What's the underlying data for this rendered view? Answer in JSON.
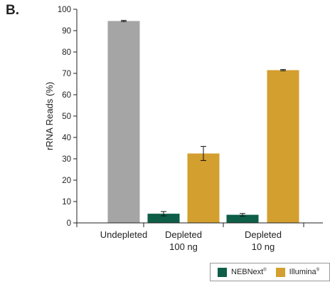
{
  "panel_label": "B.",
  "colors": {
    "undepleted": "#a5a5a5",
    "nebnext": "#0e5e48",
    "illumina": "#d39f2f",
    "axis": "#222222"
  },
  "legend": {
    "items": [
      {
        "name": "NEBNext",
        "mark": "®",
        "color": "#0e5e48"
      },
      {
        "name": "Illumina",
        "mark": "®",
        "color": "#d39f2f"
      }
    ]
  },
  "chart_data": {
    "type": "bar",
    "ylabel": "rRNA Reads (%)",
    "xlabel": "",
    "ylim": [
      0,
      100
    ],
    "yticks": [
      0,
      10,
      20,
      30,
      40,
      50,
      60,
      70,
      80,
      90,
      100
    ],
    "grid": false,
    "legend_position": "bottom-right",
    "categories": [
      {
        "lines": [
          "Undepleted"
        ]
      },
      {
        "lines": [
          "Depleted",
          "100 ng"
        ]
      },
      {
        "lines": [
          "Depleted",
          "10 ng"
        ]
      }
    ],
    "bars": [
      {
        "category": 0,
        "series": "Undepleted",
        "value": 94.5,
        "error": 0.3
      },
      {
        "category": 1,
        "series": "NEBNext",
        "value": 4.3,
        "error": 1.0
      },
      {
        "category": 1,
        "series": "Illumina",
        "value": 32.5,
        "error": 3.3
      },
      {
        "category": 2,
        "series": "NEBNext",
        "value": 3.8,
        "error": 0.6
      },
      {
        "category": 2,
        "series": "Illumina",
        "value": 71.5,
        "error": 0.3
      }
    ]
  }
}
